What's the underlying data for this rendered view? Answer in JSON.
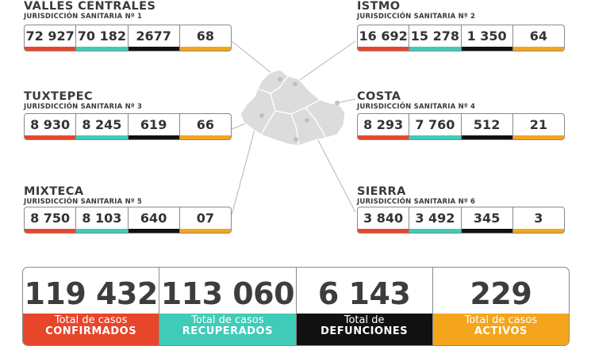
{
  "regions": [
    {
      "name": "VALLES CENTRALES",
      "jurisdiction": "JURISDICCIÓN SANITARIA Nº 1",
      "confirmed": "72 927",
      "recovered": "70 182",
      "deaths": "2677",
      "active": "68"
    },
    {
      "name": "ISTMO",
      "jurisdiction": "JURISDICCIÓN SANITARIA Nº 2",
      "confirmed": "16 692",
      "recovered": "15 278",
      "deaths": "1 350",
      "active": "64"
    },
    {
      "name": "TUXTEPEC",
      "jurisdiction": "JURISDICCIÓN SANITARIA Nº 3",
      "confirmed": "8 930",
      "recovered": "8 245",
      "deaths": "619",
      "active": "66"
    },
    {
      "name": "COSTA",
      "jurisdiction": "JURISDICCIÓN SANITARIA Nº 4",
      "confirmed": "8 293",
      "recovered": "7 760",
      "deaths": "512",
      "active": "21"
    },
    {
      "name": "MIXTECA",
      "jurisdiction": "JURISDICCIÓN SANITARIA Nº 5",
      "confirmed": "8 750",
      "recovered": "8 103",
      "deaths": "640",
      "active": "07"
    },
    {
      "name": "SIERRA",
      "jurisdiction": "JURISDICCIÓN SANITARIA Nº 6",
      "confirmed": "3 840",
      "recovered": "3 492",
      "deaths": "345",
      "active": "3"
    }
  ],
  "totals": {
    "confirmed": {
      "value": "119 432",
      "label_line1": "Total de casos",
      "label_line2": "CONFIRMADOS"
    },
    "recovered": {
      "value": "113 060",
      "label_line1": "Total de casos",
      "label_line2": "RECUPERADOS"
    },
    "deaths": {
      "value": "6 143",
      "label_line1": "Total de",
      "label_line2": "DEFUNCIONES"
    },
    "active": {
      "value": "229",
      "label_line1": "Total de casos",
      "label_line2": "ACTIVOS"
    }
  },
  "colors": {
    "confirmed": "#e8462a",
    "recovered": "#3fcbb7",
    "deaths": "#111111",
    "active": "#f4a51c",
    "map_fill": "#dcdcdc"
  },
  "map": {
    "icon": "oaxaca-state-map"
  }
}
